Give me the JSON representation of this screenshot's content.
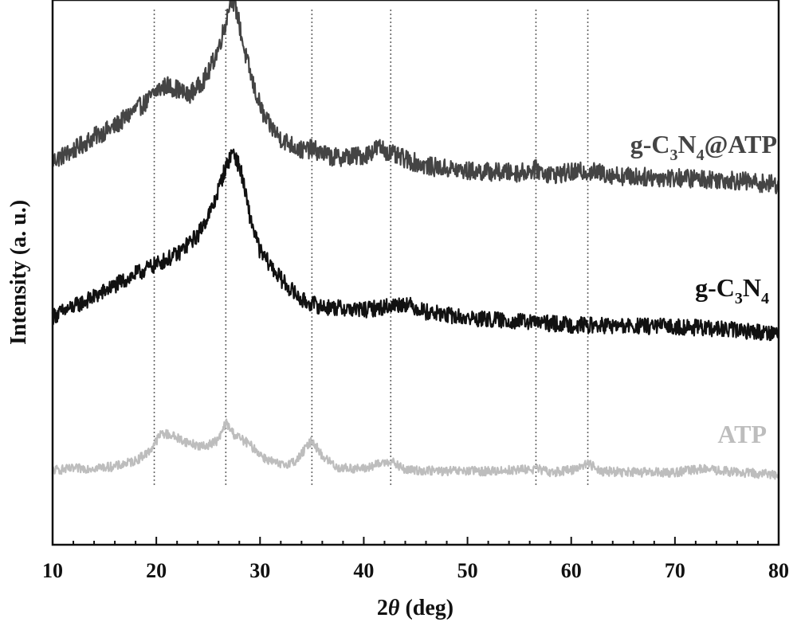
{
  "chart_data": {
    "type": "line",
    "title": "",
    "xlabel": "2θ (deg)",
    "xlabel_parts": {
      "prefix": "2",
      "theta": "θ",
      "suffix": " (deg)"
    },
    "ylabel": "Intensity (a. u.)",
    "xlim": [
      10,
      80
    ],
    "x_ticks": [
      10,
      20,
      30,
      40,
      50,
      60,
      70,
      80
    ],
    "y_ticks_shown": false,
    "grid": false,
    "reference_lines_x": [
      19.8,
      26.7,
      35.0,
      42.6,
      56.6,
      61.6
    ],
    "series": [
      {
        "name": "g-C3N4@ATP",
        "label_parts": [
          "g-C",
          "3",
          "N",
          "4",
          "@ATP"
        ],
        "color": "#444444",
        "noise": 0.055,
        "points": [
          [
            10,
            0.14
          ],
          [
            12,
            0.2
          ],
          [
            14,
            0.28
          ],
          [
            16,
            0.34
          ],
          [
            18,
            0.44
          ],
          [
            19,
            0.48
          ],
          [
            20,
            0.55
          ],
          [
            21,
            0.58
          ],
          [
            22,
            0.56
          ],
          [
            23,
            0.52
          ],
          [
            24,
            0.57
          ],
          [
            25,
            0.65
          ],
          [
            26,
            0.8
          ],
          [
            26.7,
            0.95
          ],
          [
            27.2,
            1.1
          ],
          [
            27.8,
            1.0
          ],
          [
            28.5,
            0.78
          ],
          [
            29.5,
            0.55
          ],
          [
            30.5,
            0.38
          ],
          [
            32,
            0.27
          ],
          [
            34,
            0.2
          ],
          [
            35,
            0.21
          ],
          [
            37,
            0.16
          ],
          [
            40,
            0.17
          ],
          [
            41.5,
            0.22
          ],
          [
            43,
            0.17
          ],
          [
            46,
            0.11
          ],
          [
            50,
            0.08
          ],
          [
            55,
            0.07
          ],
          [
            56.6,
            0.09
          ],
          [
            58,
            0.06
          ],
          [
            61.6,
            0.08
          ],
          [
            65,
            0.05
          ],
          [
            70,
            0.04
          ],
          [
            75,
            0.03
          ],
          [
            80,
            0.0
          ]
        ]
      },
      {
        "name": "g-C3N4",
        "label_parts": [
          "g-C",
          "3",
          "N",
          "4",
          ""
        ],
        "color": "#111111",
        "noise": 0.05,
        "points": [
          [
            10,
            0.1
          ],
          [
            12,
            0.16
          ],
          [
            14,
            0.22
          ],
          [
            16,
            0.29
          ],
          [
            18,
            0.36
          ],
          [
            20,
            0.42
          ],
          [
            22,
            0.48
          ],
          [
            24,
            0.6
          ],
          [
            25.5,
            0.78
          ],
          [
            26.5,
            0.98
          ],
          [
            27.4,
            1.12
          ],
          [
            28.2,
            0.98
          ],
          [
            29,
            0.72
          ],
          [
            30,
            0.5
          ],
          [
            32,
            0.33
          ],
          [
            34,
            0.2
          ],
          [
            36,
            0.16
          ],
          [
            40,
            0.14
          ],
          [
            44,
            0.18
          ],
          [
            46,
            0.13
          ],
          [
            50,
            0.09
          ],
          [
            55,
            0.07
          ],
          [
            60,
            0.05
          ],
          [
            65,
            0.04
          ],
          [
            70,
            0.04
          ],
          [
            75,
            0.02
          ],
          [
            80,
            0.0
          ]
        ]
      },
      {
        "name": "ATP",
        "label_parts": [
          "ATP",
          "",
          "",
          "",
          ""
        ],
        "color": "#bdbdbd",
        "noise": 0.04,
        "points": [
          [
            10,
            0.04
          ],
          [
            12,
            0.05
          ],
          [
            14,
            0.06
          ],
          [
            16,
            0.07
          ],
          [
            18,
            0.12
          ],
          [
            19.3,
            0.2
          ],
          [
            20.5,
            0.36
          ],
          [
            21.5,
            0.34
          ],
          [
            23,
            0.28
          ],
          [
            24.5,
            0.24
          ],
          [
            26,
            0.3
          ],
          [
            26.7,
            0.45
          ],
          [
            27.5,
            0.35
          ],
          [
            29,
            0.26
          ],
          [
            30.5,
            0.14
          ],
          [
            32,
            0.08
          ],
          [
            33.5,
            0.12
          ],
          [
            35,
            0.3
          ],
          [
            36,
            0.16
          ],
          [
            37.5,
            0.06
          ],
          [
            40,
            0.05
          ],
          [
            42.5,
            0.12
          ],
          [
            44,
            0.04
          ],
          [
            48,
            0.03
          ],
          [
            52,
            0.03
          ],
          [
            56.6,
            0.05
          ],
          [
            58,
            0.02
          ],
          [
            60,
            0.04
          ],
          [
            61.6,
            0.1
          ],
          [
            63,
            0.03
          ],
          [
            66,
            0.02
          ],
          [
            70,
            0.02
          ],
          [
            72.5,
            0.05
          ],
          [
            76,
            0.02
          ],
          [
            80,
            0.0
          ]
        ]
      }
    ]
  }
}
